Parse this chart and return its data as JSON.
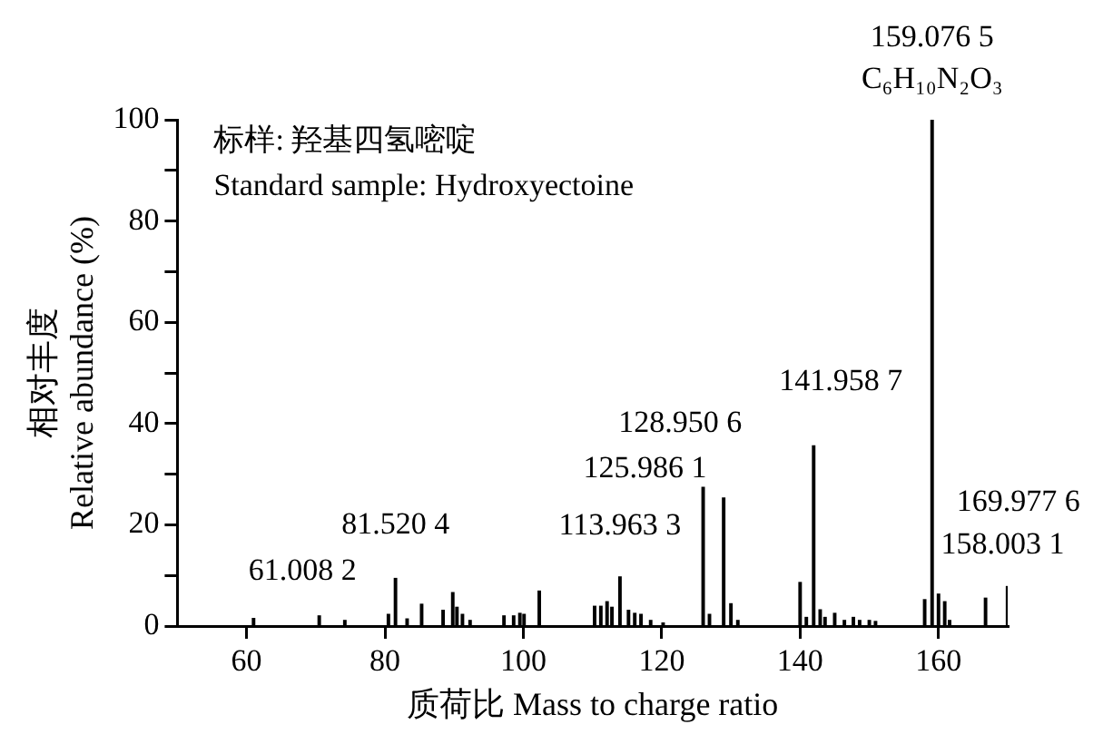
{
  "chart_data": {
    "type": "bar",
    "xlabel": "质荷比 Mass to charge ratio",
    "ylabel": "相对丰度\nRelative abundance (%)",
    "color": "#000000",
    "x": [
      61.0082,
      70.5,
      74.2,
      80.5,
      81.5204,
      83.2,
      85.3,
      88.4,
      89.8,
      90.4,
      91.2,
      92.3,
      97.2,
      98.6,
      99.5,
      100.1,
      102.3,
      110.3,
      111.2,
      112.1,
      112.8,
      113.9633,
      115.2,
      116.1,
      117,
      118.4,
      120.2,
      125.9861,
      126.9,
      128.9506,
      130,
      131,
      140,
      140.9,
      141.9587,
      142.9,
      143.6,
      145,
      146.4,
      147.7,
      148.6,
      150,
      150.9,
      158.0031,
      159.0765,
      160,
      160.9,
      161.6,
      166.8,
      169.9776
    ],
    "values": [
      1.5,
      2,
      1.1,
      2.3,
      9.4,
      1.4,
      4.3,
      3.1,
      6.6,
      3.7,
      2.3,
      1.1,
      2,
      2,
      2.5,
      2.3,
      6.9,
      3.9,
      3.9,
      4.8,
      3.7,
      9.7,
      3.1,
      2.5,
      2.3,
      1.1,
      0.6,
      27.4,
      2.3,
      25.3,
      4.4,
      1.1,
      8.6,
      1.7,
      35.6,
      3.2,
      1.7,
      2.5,
      1.1,
      1.7,
      1.1,
      1.1,
      0.9,
      5.2,
      100,
      6.3,
      4.8,
      1.1,
      5.5,
      7.8
    ],
    "xlim": [
      50,
      170
    ],
    "xticks": [
      60,
      80,
      100,
      120,
      140,
      160
    ],
    "ylim": [
      0,
      100
    ],
    "yticks": [
      0,
      {
        "value": 10,
        "label": null
      },
      20,
      {
        "value": 30,
        "label": null
      },
      40,
      {
        "value": 50,
        "label": null
      },
      60,
      {
        "value": 70,
        "label": null
      },
      80,
      {
        "value": 90,
        "label": null
      },
      100
    ],
    "annotations": [
      "标样: 羟基四氢嘧啶",
      "Standard sample: Hydroxyectoine",
      {
        "text": "159.076 5",
        "x": 159.0765,
        "y": 100
      },
      {
        "text": "C₆H₁₀N₂O₃",
        "x": 159.0765,
        "y": 100
      },
      {
        "text": "61.008 2",
        "x": 61.0082,
        "y": 1.5
      },
      {
        "text": "81.520 4",
        "x": 81.5204,
        "y": 9.4
      },
      {
        "text": "113.963 3",
        "x": 113.9633,
        "y": 9.7
      },
      {
        "text": "125.986 1",
        "x": 125.9861,
        "y": 27.4
      },
      {
        "text": "128.950 6",
        "x": 128.9506,
        "y": 25.3
      },
      {
        "text": "141.958 7",
        "x": 141.9587,
        "y": 35.6
      },
      {
        "text": "158.003 1",
        "x": 158.0031,
        "y": 5.2
      },
      {
        "text": "169.977 6",
        "x": 169.9776,
        "y": 7.8
      }
    ]
  }
}
